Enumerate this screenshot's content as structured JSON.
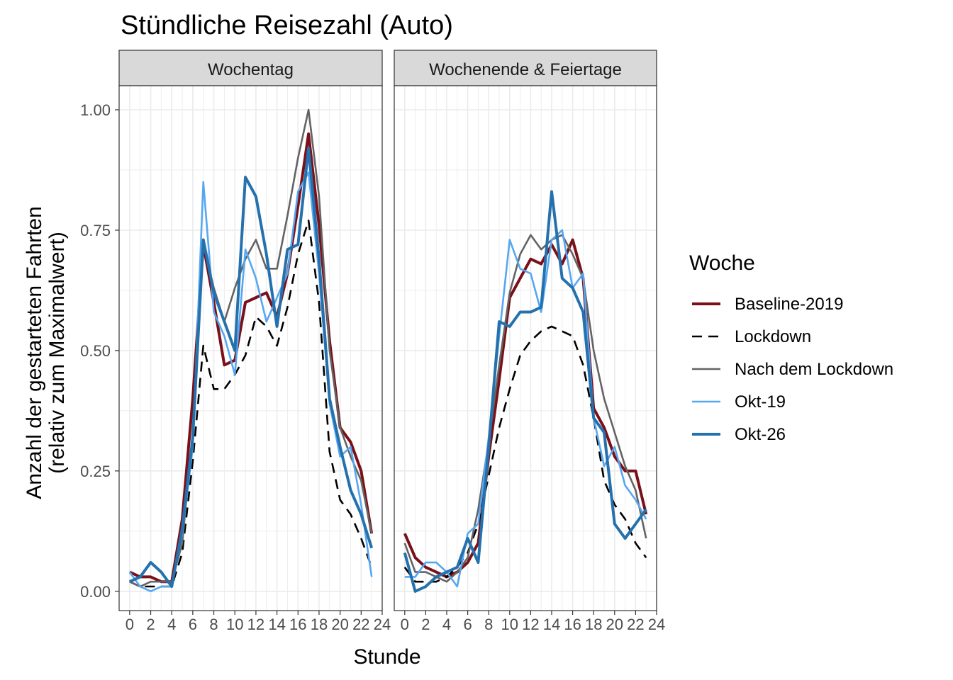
{
  "chart_data": {
    "type": "line",
    "title": "Stündliche Reisezahl (Auto)",
    "xlabel": "Stunde",
    "ylabel_lines": [
      "Anzahl der gestarteten Fahrten",
      "(relativ zum Maximalwert)"
    ],
    "xlim": [
      -1,
      24
    ],
    "ylim": [
      -0.04,
      1.05
    ],
    "xticks": [
      0,
      2,
      4,
      6,
      8,
      10,
      12,
      14,
      16,
      18,
      20,
      22,
      24
    ],
    "yticks": [
      0,
      0.25,
      0.5,
      0.75,
      1.0
    ],
    "ytick_labels": [
      "0.00",
      "0.25",
      "0.50",
      "0.75",
      "1.00"
    ],
    "grid": true,
    "legend": {
      "title": "Woche",
      "placement": "right"
    },
    "x": [
      0,
      1,
      2,
      3,
      4,
      5,
      6,
      7,
      8,
      9,
      10,
      11,
      12,
      13,
      14,
      15,
      16,
      17,
      18,
      19,
      20,
      21,
      22,
      23
    ],
    "series_styles": [
      {
        "name": "Baseline-2019",
        "color": "#7a1019",
        "dash": "solid",
        "width": "thick"
      },
      {
        "name": "Lockdown",
        "color": "#000000",
        "dash": "dashed",
        "width": "medium"
      },
      {
        "name": "Nach dem Lockdown",
        "color": "#636363",
        "dash": "solid",
        "width": "medium"
      },
      {
        "name": "Okt-19",
        "color": "#56a7f2",
        "dash": "solid",
        "width": "medium"
      },
      {
        "name": "Okt-26",
        "color": "#2471ad",
        "dash": "solid",
        "width": "thick"
      }
    ],
    "panels": [
      {
        "label": "Wochentag",
        "series": [
          {
            "name": "Baseline-2019",
            "values": [
              0.04,
              0.03,
              0.03,
              0.02,
              0.02,
              0.15,
              0.4,
              0.72,
              0.6,
              0.47,
              0.48,
              0.6,
              0.61,
              0.62,
              0.57,
              0.66,
              0.8,
              0.95,
              0.76,
              0.52,
              0.34,
              0.31,
              0.25,
              0.12
            ]
          },
          {
            "name": "Lockdown",
            "values": [
              0.02,
              0.01,
              0.01,
              0.01,
              0.01,
              0.08,
              0.27,
              0.51,
              0.42,
              0.42,
              0.45,
              0.49,
              0.57,
              0.55,
              0.51,
              0.59,
              0.7,
              0.77,
              0.6,
              0.29,
              0.19,
              0.16,
              0.11,
              0.05
            ]
          },
          {
            "name": "Nach dem Lockdown",
            "values": [
              0.02,
              0.01,
              0.02,
              0.02,
              0.02,
              0.1,
              0.33,
              0.72,
              0.63,
              0.56,
              0.63,
              0.69,
              0.73,
              0.67,
              0.67,
              0.78,
              0.9,
              1.0,
              0.82,
              0.5,
              0.34,
              0.28,
              0.23,
              0.12
            ]
          },
          {
            "name": "Okt-19",
            "values": [
              0.04,
              0.01,
              0.0,
              0.01,
              0.01,
              0.12,
              0.3,
              0.85,
              0.58,
              0.53,
              0.45,
              0.71,
              0.65,
              0.56,
              0.61,
              0.66,
              0.83,
              0.87,
              0.66,
              0.39,
              0.28,
              0.3,
              0.18,
              0.03
            ]
          },
          {
            "name": "Okt-26",
            "values": [
              0.02,
              0.03,
              0.06,
              0.04,
              0.01,
              0.13,
              0.32,
              0.73,
              0.62,
              0.56,
              0.5,
              0.86,
              0.82,
              0.7,
              0.55,
              0.71,
              0.72,
              0.92,
              0.69,
              0.4,
              0.3,
              0.21,
              0.16,
              0.09
            ]
          }
        ]
      },
      {
        "label": "Wochenende & Feiertage",
        "series": [
          {
            "name": "Baseline-2019",
            "values": [
              0.12,
              0.07,
              0.05,
              0.04,
              0.03,
              0.04,
              0.06,
              0.1,
              0.28,
              0.44,
              0.61,
              0.65,
              0.69,
              0.68,
              0.72,
              0.68,
              0.73,
              0.65,
              0.38,
              0.34,
              0.28,
              0.25,
              0.25,
              0.16
            ]
          },
          {
            "name": "Lockdown",
            "values": [
              0.05,
              0.02,
              0.02,
              0.02,
              0.03,
              0.05,
              0.08,
              0.14,
              0.24,
              0.34,
              0.42,
              0.49,
              0.52,
              0.54,
              0.55,
              0.54,
              0.53,
              0.47,
              0.36,
              0.23,
              0.18,
              0.15,
              0.1,
              0.07
            ]
          },
          {
            "name": "Nach dem Lockdown",
            "values": [
              0.1,
              0.04,
              0.04,
              0.03,
              0.02,
              0.04,
              0.07,
              0.17,
              0.31,
              0.47,
              0.62,
              0.7,
              0.74,
              0.71,
              0.73,
              0.74,
              0.7,
              0.65,
              0.5,
              0.4,
              0.33,
              0.26,
              0.21,
              0.11
            ]
          },
          {
            "name": "Okt-19",
            "values": [
              0.03,
              0.03,
              0.06,
              0.06,
              0.04,
              0.01,
              0.12,
              0.14,
              0.32,
              0.53,
              0.73,
              0.67,
              0.66,
              0.58,
              0.73,
              0.75,
              0.63,
              0.66,
              0.36,
              0.26,
              0.3,
              0.22,
              0.19,
              0.15
            ]
          },
          {
            "name": "Okt-26",
            "values": [
              0.08,
              0.0,
              0.01,
              0.03,
              0.04,
              0.05,
              0.11,
              0.06,
              0.3,
              0.56,
              0.55,
              0.58,
              0.58,
              0.59,
              0.83,
              0.65,
              0.63,
              0.58,
              0.36,
              0.33,
              0.14,
              0.11,
              0.14,
              0.17
            ]
          }
        ]
      }
    ]
  }
}
